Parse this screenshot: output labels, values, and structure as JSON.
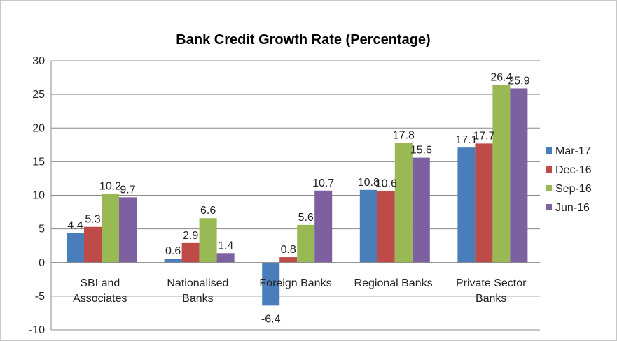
{
  "chart_data": {
    "type": "bar",
    "title": "Bank Credit Growth Rate (Percentage)",
    "xlabel": "",
    "ylabel": "",
    "ylim": [
      -10,
      30
    ],
    "yticks": [
      30,
      25,
      20,
      15,
      10,
      5,
      0,
      -5,
      -10
    ],
    "categories": [
      [
        "SBI and",
        "Associates"
      ],
      [
        "Nationalised",
        "Banks"
      ],
      [
        "Foreign Banks"
      ],
      [
        "Regional Banks"
      ],
      [
        "Private Sector",
        "Banks"
      ]
    ],
    "series": [
      {
        "name": "Mar-17",
        "color": "#4a7ebb",
        "values": [
          4.4,
          0.6,
          -6.4,
          10.8,
          17.1
        ]
      },
      {
        "name": "Dec-16",
        "color": "#be4b48",
        "values": [
          5.3,
          2.9,
          0.8,
          10.6,
          17.7
        ]
      },
      {
        "name": "Sep-16",
        "color": "#98b954",
        "values": [
          10.2,
          6.6,
          5.6,
          17.8,
          26.4
        ]
      },
      {
        "name": "Jun-16",
        "color": "#7d60a0",
        "values": [
          9.7,
          1.4,
          10.7,
          15.6,
          25.9
        ]
      }
    ],
    "grid": true,
    "legend": "right"
  }
}
